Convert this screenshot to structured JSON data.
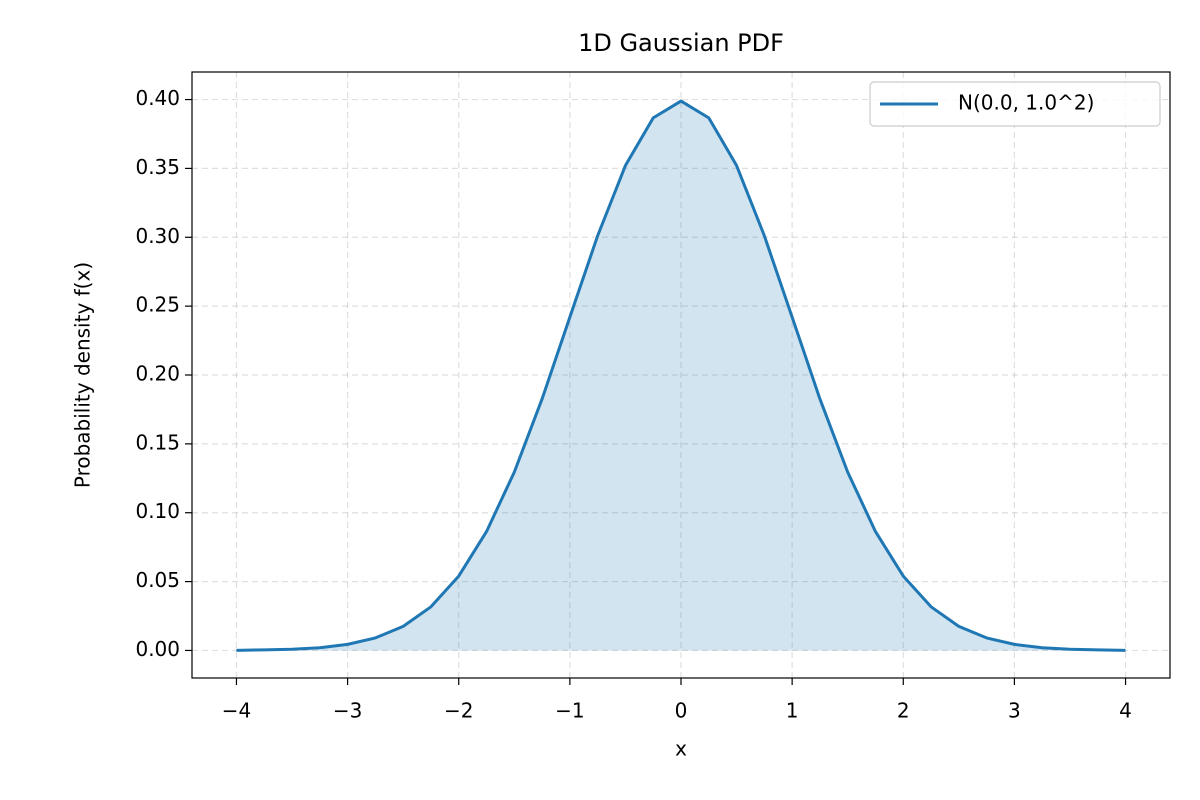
{
  "chart_data": {
    "type": "line",
    "title": "1D Gaussian PDF",
    "x_label": "x",
    "y_label": "Probability density f(x)",
    "x": [
      -4,
      -3.75,
      -3.5,
      -3.25,
      -3,
      -2.75,
      -2.5,
      -2.25,
      -2,
      -1.75,
      -1.5,
      -1.25,
      -1,
      -0.75,
      -0.5,
      -0.25,
      0,
      0.25,
      0.5,
      0.75,
      1,
      1.25,
      1.5,
      1.75,
      2,
      2.25,
      2.5,
      2.75,
      3,
      3.25,
      3.5,
      3.75,
      4
    ],
    "series": [
      {
        "name": "N(0.0, 1.0^2)",
        "color": "#1f77b4",
        "values": [
          0.0001,
          0.0004,
          0.0009,
          0.002,
          0.0044,
          0.0091,
          0.0175,
          0.0317,
          0.054,
          0.0863,
          0.1295,
          0.1826,
          0.242,
          0.3011,
          0.3521,
          0.3867,
          0.3989,
          0.3867,
          0.3521,
          0.3011,
          0.242,
          0.1826,
          0.1295,
          0.0863,
          0.054,
          0.0317,
          0.0175,
          0.0091,
          0.0044,
          0.002,
          0.0009,
          0.0004,
          0.0001
        ]
      }
    ],
    "fill_under": true,
    "fill_alpha": 0.2,
    "xlim": [
      -4.4,
      4.4
    ],
    "ylim": [
      -0.02,
      0.42
    ],
    "xticks": [
      {
        "value": -4,
        "label": "−4"
      },
      {
        "value": -3,
        "label": "−3"
      },
      {
        "value": -2,
        "label": "−2"
      },
      {
        "value": -1,
        "label": "−1"
      },
      0,
      1,
      2,
      3,
      4
    ],
    "yticks": [
      {
        "value": 0,
        "label": "0.00"
      },
      0.05,
      {
        "value": 0.1,
        "label": "0.10"
      },
      0.15,
      {
        "value": 0.2,
        "label": "0.20"
      },
      0.25,
      {
        "value": 0.3,
        "label": "0.30"
      },
      0.35,
      {
        "value": 0.4,
        "label": "0.40"
      }
    ],
    "grid": true,
    "legend": "upper right"
  }
}
